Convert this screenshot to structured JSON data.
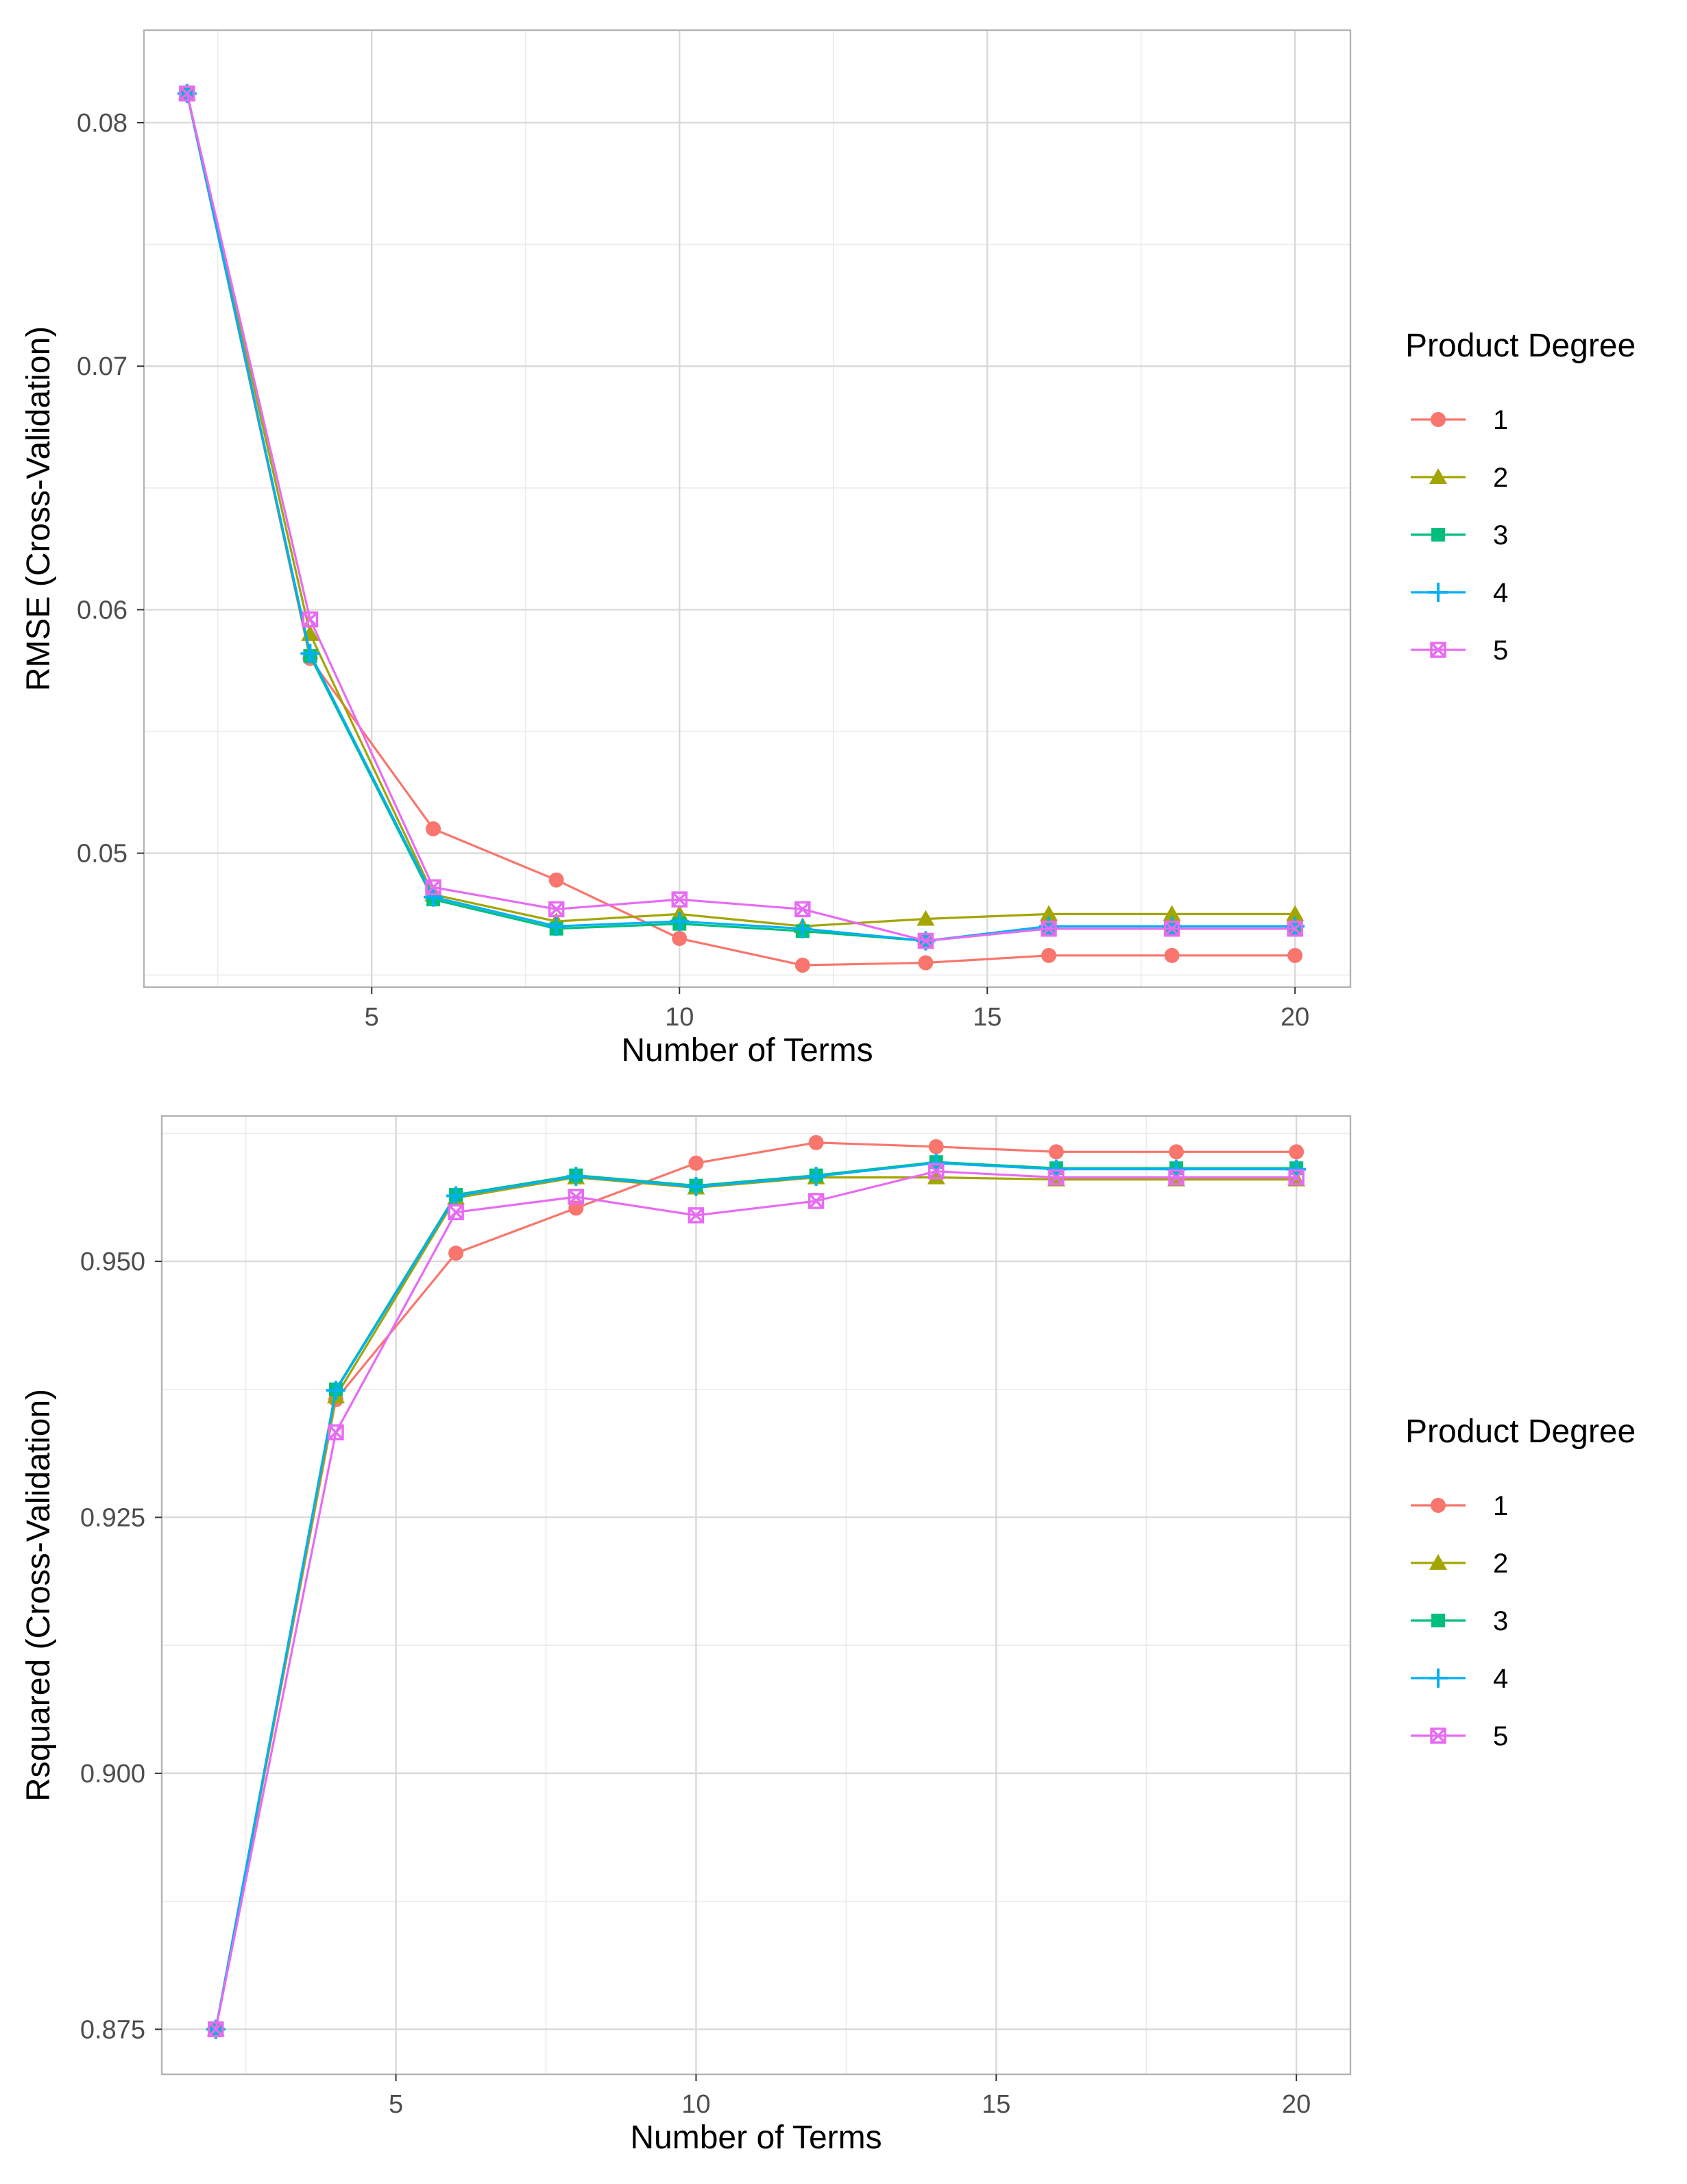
{
  "chart_data": [
    {
      "type": "line",
      "xlabel": "Number of Terms",
      "ylabel": "RMSE (Cross-Validation)",
      "xlim": [
        1.3,
        20.9
      ],
      "ylim": [
        0.0445,
        0.0838
      ],
      "xticks": [
        5,
        10,
        15,
        20
      ],
      "yticks": [
        0.05,
        0.06,
        0.07,
        0.08
      ],
      "ytick_labels": [
        "0.05",
        "0.06",
        "0.07",
        "0.08"
      ],
      "grid": true,
      "legend": {
        "title": "Product Degree",
        "position": "right"
      },
      "x": [
        2,
        4,
        6,
        8,
        10,
        12,
        14,
        16,
        18,
        20
      ],
      "series": [
        {
          "name": "1",
          "color": "#F8766D",
          "marker": "circle",
          "values": [
            0.0812,
            0.058,
            0.051,
            0.0489,
            0.0465,
            0.0454,
            0.0455,
            0.0458,
            0.0458,
            0.0458
          ]
        },
        {
          "name": "2",
          "color": "#A3A500",
          "marker": "triangle",
          "values": [
            0.0812,
            0.059,
            0.0483,
            0.0472,
            0.0475,
            0.047,
            0.0473,
            0.0475,
            0.0475,
            0.0475
          ]
        },
        {
          "name": "3",
          "color": "#00BF7D",
          "marker": "square",
          "values": [
            0.0812,
            0.0581,
            0.0481,
            0.0469,
            0.0471,
            0.0468,
            0.0464,
            0.0469,
            0.0469,
            0.0469
          ]
        },
        {
          "name": "4",
          "color": "#00B0F6",
          "marker": "plus",
          "values": [
            0.0812,
            0.0582,
            0.0482,
            0.047,
            0.0472,
            0.0469,
            0.0464,
            0.047,
            0.047,
            0.047
          ]
        },
        {
          "name": "5",
          "color": "#E76BF3",
          "marker": "boxx",
          "values": [
            0.0812,
            0.0596,
            0.0486,
            0.0477,
            0.0481,
            0.0477,
            0.0464,
            0.0469,
            0.0469,
            0.0469
          ]
        }
      ]
    },
    {
      "type": "line",
      "xlabel": "Number of Terms",
      "ylabel": "Rsquared (Cross-Validation)",
      "xlim": [
        1.1,
        20.9
      ],
      "ylim": [
        0.8706,
        0.9642
      ],
      "xticks": [
        5,
        10,
        15,
        20
      ],
      "yticks": [
        0.875,
        0.9,
        0.925,
        0.95
      ],
      "ytick_labels": [
        "0.875",
        "0.900",
        "0.925",
        "0.950"
      ],
      "grid": true,
      "legend": {
        "title": "Product Degree",
        "position": "right"
      },
      "x": [
        2,
        4,
        6,
        8,
        10,
        12,
        14,
        16,
        18,
        20
      ],
      "series": [
        {
          "name": "1",
          "color": "#F8766D",
          "marker": "circle",
          "values": [
            0.875,
            0.9365,
            0.9508,
            0.9552,
            0.9596,
            0.9616,
            0.9612,
            0.9607,
            0.9607,
            0.9607
          ]
        },
        {
          "name": "2",
          "color": "#A3A500",
          "marker": "triangle",
          "values": [
            0.875,
            0.9368,
            0.9562,
            0.9582,
            0.9572,
            0.9582,
            0.9582,
            0.958,
            0.958,
            0.958
          ]
        },
        {
          "name": "3",
          "color": "#00BF7D",
          "marker": "square",
          "values": [
            0.875,
            0.9375,
            0.9565,
            0.9584,
            0.9574,
            0.9584,
            0.9597,
            0.9591,
            0.9591,
            0.9591
          ]
        },
        {
          "name": "4",
          "color": "#00B0F6",
          "marker": "plus",
          "values": [
            0.875,
            0.9374,
            0.9564,
            0.9583,
            0.9573,
            0.9583,
            0.9596,
            0.959,
            0.959,
            0.959
          ]
        },
        {
          "name": "5",
          "color": "#E76BF3",
          "marker": "boxx",
          "values": [
            0.875,
            0.9333,
            0.9548,
            0.9563,
            0.9545,
            0.9559,
            0.9588,
            0.9582,
            0.9582,
            0.9582
          ]
        }
      ]
    }
  ]
}
